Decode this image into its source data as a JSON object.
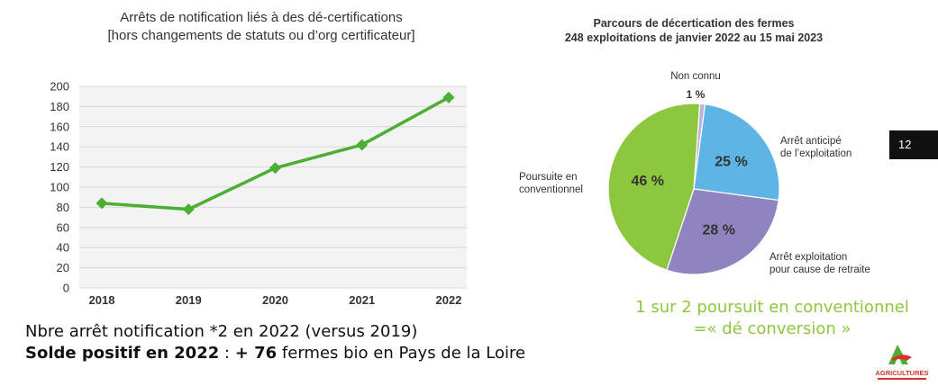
{
  "colors": {
    "line": "#4caf33",
    "conventionnel": "#8dc63f",
    "arret_anticipe": "#5eb4e4",
    "arret_retraite": "#8f84c0",
    "non_connu": "#b9b3d8",
    "conclusion": "#8dc63f",
    "plot_bg": "#f3f3f3"
  },
  "line_chart": {
    "title": "Arrêts de notification liés à des dé-certifications",
    "subtitle": "[hors changements de statuts ou d’org certificateur]"
  },
  "pie_chart": {
    "title": "Parcours de décertication des fermes",
    "subtitle": "248 exploitations de janvier 2022 au 15 mai 2023"
  },
  "chart_data": [
    {
      "type": "line",
      "title": "Arrêts de notification liés à des dé-certifications",
      "subtitle": "[hors changements de statuts ou d’org certificateur]",
      "categories": [
        "2018",
        "2019",
        "2020",
        "2021",
        "2022"
      ],
      "values": [
        84,
        78,
        119,
        142,
        189
      ],
      "ylim": [
        0,
        200
      ],
      "yticks": [
        "0",
        "20",
        "40",
        "60",
        "80",
        "100",
        "120",
        "140",
        "160",
        "180",
        "200"
      ],
      "grid": true,
      "marker": "diamond"
    },
    {
      "type": "pie",
      "title": "Parcours de décertication des fermes",
      "subtitle": "248 exploitations de janvier 2022 au 15 mai 2023",
      "slices": [
        {
          "label": "Non connu",
          "value": 1,
          "value_label": "1 %",
          "color_key": "non_connu"
        },
        {
          "label": "Arrêt anticipé de l’exploitation",
          "label_lines": [
            "Arrêt anticipé",
            "de l’exploitation"
          ],
          "value": 25,
          "value_label": "25 %",
          "color_key": "arret_anticipe"
        },
        {
          "label": "Arrêt exploitation pour cause de retraite",
          "label_lines": [
            "Arrêt exploitation",
            "pour cause de retraite"
          ],
          "value": 28,
          "value_label": "28 %",
          "color_key": "arret_retraite"
        },
        {
          "label": "Poursuite en conventionnel",
          "label_lines": [
            "Poursuite en",
            "conventionnel"
          ],
          "value": 46,
          "value_label": "46 %",
          "color_key": "conventionnel"
        }
      ]
    }
  ],
  "page_number": "12",
  "conclusion": {
    "line1": "1 sur 2 poursuit en conventionnel",
    "line2": "=« dé conversion »"
  },
  "notes": {
    "line1": "Nbre arrêt notification *2 en 2022 (versus 2019)",
    "line2_bold_a": "Solde positif en 2022",
    "line2_mid": " : ",
    "line2_bold_b": "+ 76",
    "line2_rest": " fermes bio en Pays de la Loire"
  },
  "logo": {
    "name": "agricultures-logo-icon",
    "text": "AGRICULTURES"
  }
}
